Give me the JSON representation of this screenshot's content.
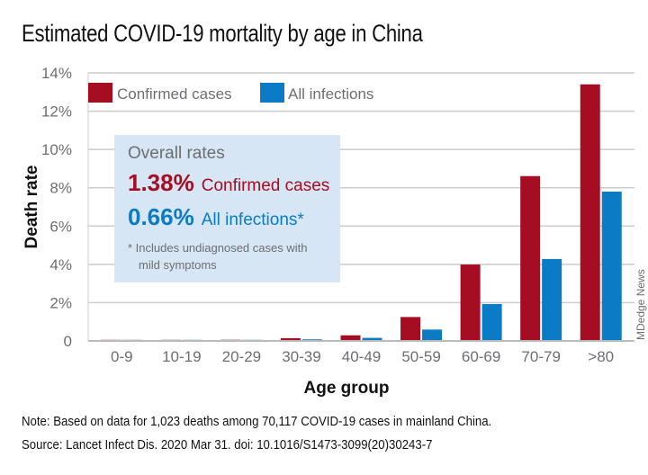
{
  "title": "Estimated COVID-19 mortality by age in China",
  "colors": {
    "confirmed": "#a50d22",
    "all": "#0a7bc4",
    "grid": "#cccccc",
    "box_bg": "#d6e6f4"
  },
  "overall_box": {
    "header": "Overall rates",
    "confirmed_value": "1.38%",
    "confirmed_label": "Confirmed cases",
    "all_value": "0.66%",
    "all_label": "All infections*",
    "footnote_line1": "* Includes undiagnosed cases with",
    "footnote_line2": "mild symptoms"
  },
  "credit": "MDedge News",
  "note_label": "Note:",
  "note_text": "Based on data for 1,023 deaths among 70,117 COVID-19 cases in mainland China.",
  "source_label": "Source:",
  "source_text": "Lancet Infect Dis. 2020 Mar 31. doi: 10.1016/S1473-3099(20)30243-7",
  "chart_data": {
    "type": "bar",
    "title": "Estimated COVID-19 mortality by age in China",
    "xlabel": "Age group",
    "ylabel": "Death rate",
    "ylim": [
      0,
      14
    ],
    "yticks": [
      0,
      2,
      4,
      6,
      8,
      10,
      12,
      14
    ],
    "ytick_labels": [
      "0",
      "2%",
      "4%",
      "6%",
      "8%",
      "10%",
      "12%",
      "14%"
    ],
    "grid": true,
    "legend_position": "top-left",
    "categories": [
      "0-9",
      "10-19",
      "20-29",
      "30-39",
      "40-49",
      "50-59",
      "60-69",
      "70-79",
      ">80"
    ],
    "series": [
      {
        "name": "Confirmed cases",
        "color": "#a50d22",
        "values": [
          0.0026,
          0.0148,
          0.06,
          0.146,
          0.295,
          1.25,
          3.99,
          8.61,
          13.4
        ]
      },
      {
        "name": "All infections",
        "color": "#0a7bc4",
        "values": [
          0.0016,
          0.007,
          0.031,
          0.084,
          0.161,
          0.595,
          1.93,
          4.28,
          7.8
        ]
      }
    ]
  }
}
